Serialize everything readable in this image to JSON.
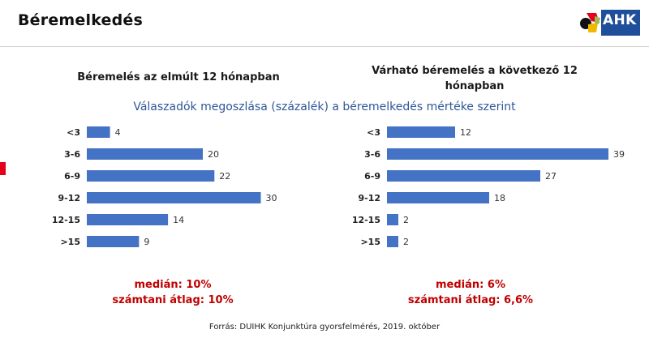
{
  "header": {
    "title": "Béremelkedés",
    "logo_text": "AHK"
  },
  "subtitle": "Válaszadók megoszlása (százalék) a béremelkedés mértéke szerint",
  "colors": {
    "bar": "#4472c4",
    "accent": "#c00000",
    "subtitle": "#2f5597"
  },
  "left_panel": {
    "median": "medián: 10%",
    "mean": "számtani átlag: 10%"
  },
  "right_panel": {
    "median": "medián: 6%",
    "mean": "számtani átlag: 6,6%"
  },
  "source": "Forrás: DUIHK Konjunktúra gyorsfelmérés, 2019. október",
  "chart_data": [
    {
      "type": "bar",
      "orientation": "horizontal",
      "title": "Béremelés az elmúlt 12 hónapban",
      "categories": [
        "<3",
        "3-6",
        "6-9",
        "9-12",
        "12-15",
        ">15"
      ],
      "values": [
        4,
        20,
        22,
        30,
        14,
        9
      ],
      "xlim": [
        0,
        40
      ],
      "grid": false
    },
    {
      "type": "bar",
      "orientation": "horizontal",
      "title": "Várható béremelés a következő 12 hónapban",
      "categories": [
        "<3",
        "3-6",
        "6-9",
        "9-12",
        "12-15",
        ">15"
      ],
      "values": [
        12,
        39,
        27,
        18,
        2,
        2
      ],
      "xlim": [
        0,
        40
      ],
      "grid": false
    }
  ]
}
